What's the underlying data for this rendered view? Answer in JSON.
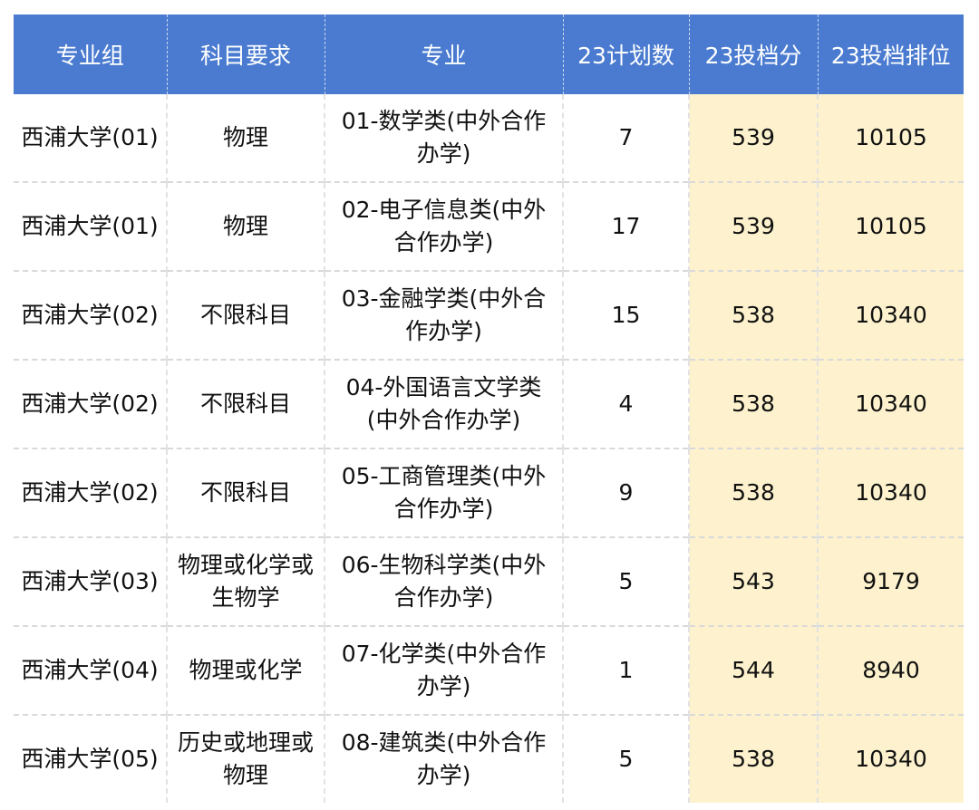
{
  "table": {
    "headers": [
      "专业组",
      "科目要求",
      "专业",
      "23计划数",
      "23投档分",
      "23投档排位"
    ],
    "rows": [
      [
        "西浦大学(01)",
        "物理",
        "01-数学类(中外合作办学)",
        "7",
        "539",
        "10105"
      ],
      [
        "西浦大学(01)",
        "物理",
        "02-电子信息类(中外合作办学)",
        "17",
        "539",
        "10105"
      ],
      [
        "西浦大学(02)",
        "不限科目",
        "03-金融学类(中外合作办学)",
        "15",
        "538",
        "10340"
      ],
      [
        "西浦大学(02)",
        "不限科目",
        "04-外国语言文学类(中外合作办学)",
        "4",
        "538",
        "10340"
      ],
      [
        "西浦大学(02)",
        "不限科目",
        "05-工商管理类(中外合作办学)",
        "9",
        "538",
        "10340"
      ],
      [
        "西浦大学(03)",
        "物理或化学或生物学",
        "06-生物科学类(中外合作办学)",
        "5",
        "543",
        "9179"
      ],
      [
        "西浦大学(04)",
        "物理或化学",
        "07-化学类(中外合作办学)",
        "1",
        "544",
        "8940"
      ],
      [
        "西浦大学(05)",
        "历史或地理或物理",
        "08-建筑类(中外合作办学)",
        "5",
        "538",
        "10340"
      ]
    ],
    "colors": {
      "header_bg": "#4a7bd0",
      "header_text": "#ffffff",
      "highlight_bg": "#fdf2cd"
    }
  }
}
